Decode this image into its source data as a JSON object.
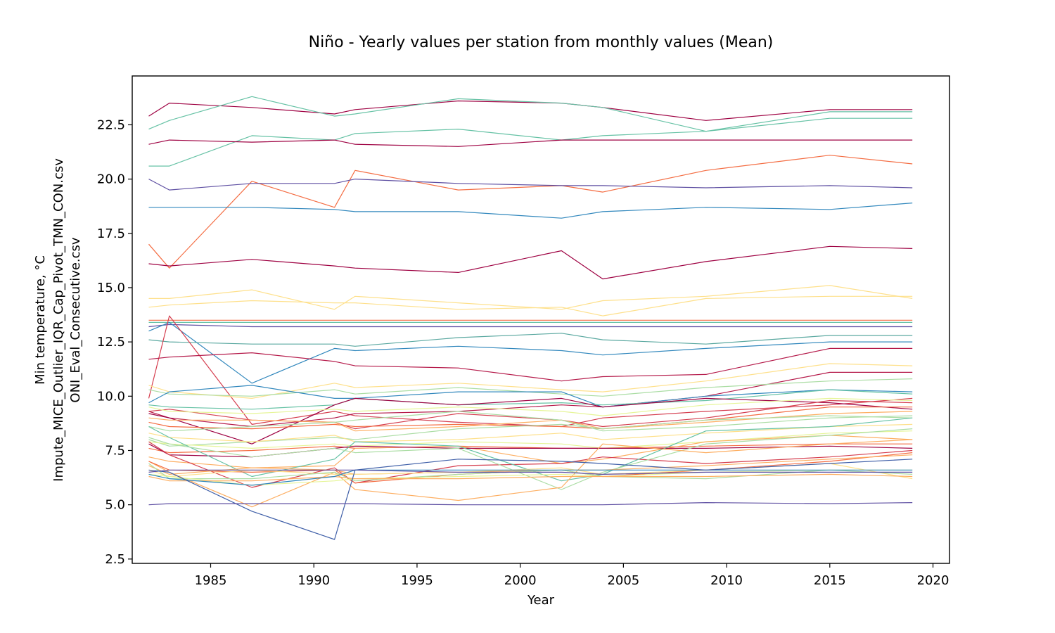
{
  "chart_data": {
    "type": "line",
    "title": "Niño - Yearly values per station from monthly values (Mean)",
    "xlabel": "Year",
    "ylabel_lines": [
      "Min temperature, °C",
      "Impute_MICE_Outlier_IQR_Cap_Pivot_TMN_CON.csv",
      "ONI_Eval_Consecutive.csv"
    ],
    "xlim": [
      1981.2,
      2020.8
    ],
    "ylim": [
      2.3,
      24.75
    ],
    "xticks": [
      1985,
      1990,
      1995,
      2000,
      2005,
      2010,
      2015,
      2020
    ],
    "yticks": [
      2.5,
      5.0,
      7.5,
      10.0,
      12.5,
      15.0,
      17.5,
      20.0,
      22.5
    ],
    "ytick_labels": [
      "2.5",
      "5.0",
      "7.5",
      "10.0",
      "12.5",
      "15.0",
      "17.5",
      "20.0",
      "22.5"
    ],
    "grid": false,
    "x": [
      1982,
      1983,
      1987,
      1991,
      1992,
      1997,
      2002,
      2004,
      2009,
      2015,
      2019
    ],
    "series": [
      {
        "color": "#9e0142",
        "values": [
          22.9,
          23.5,
          23.3,
          23.0,
          23.2,
          23.6,
          23.5,
          23.3,
          22.7,
          23.2,
          23.2
        ]
      },
      {
        "color": "#66c2a5",
        "values": [
          22.3,
          22.7,
          23.8,
          22.9,
          23.0,
          23.7,
          23.5,
          23.3,
          22.2,
          23.1,
          23.1
        ]
      },
      {
        "color": "#66c2a5",
        "values": [
          20.6,
          20.6,
          22.0,
          21.8,
          22.1,
          22.3,
          21.8,
          22.0,
          22.2,
          22.8,
          22.8
        ]
      },
      {
        "color": "#9e0142",
        "values": [
          21.6,
          21.8,
          21.7,
          21.8,
          21.6,
          21.5,
          21.8,
          21.8,
          21.8,
          21.8,
          21.8
        ]
      },
      {
        "color": "#f46d43",
        "values": [
          17.0,
          15.9,
          19.9,
          18.7,
          20.4,
          19.5,
          19.7,
          19.4,
          20.4,
          21.1,
          20.7
        ]
      },
      {
        "color": "#5e4fa2",
        "values": [
          20.0,
          19.5,
          19.8,
          19.8,
          20.0,
          19.8,
          19.7,
          19.7,
          19.6,
          19.7,
          19.6
        ]
      },
      {
        "color": "#3288bd",
        "values": [
          18.7,
          18.7,
          18.7,
          18.6,
          18.5,
          18.5,
          18.2,
          18.5,
          18.7,
          18.6,
          18.9
        ]
      },
      {
        "color": "#9e0142",
        "values": [
          16.1,
          16.0,
          16.3,
          16.0,
          15.9,
          15.7,
          16.7,
          15.4,
          16.2,
          16.9,
          16.8
        ]
      },
      {
        "color": "#fee08b",
        "values": [
          14.5,
          14.5,
          14.9,
          14.0,
          14.6,
          14.3,
          14.0,
          14.4,
          14.6,
          15.1,
          14.5
        ]
      },
      {
        "color": "#fee08b",
        "values": [
          14.1,
          14.2,
          14.4,
          14.3,
          14.3,
          14.0,
          14.1,
          13.7,
          14.5,
          14.6,
          14.6
        ]
      },
      {
        "color": "#f46d43",
        "values": [
          13.5,
          13.5,
          13.5,
          13.5,
          13.5,
          13.5,
          13.5,
          13.5,
          13.5,
          13.5,
          13.5
        ]
      },
      {
        "color": "#66c2a5",
        "values": [
          13.4,
          13.4,
          13.4,
          13.4,
          13.4,
          13.4,
          13.4,
          13.4,
          13.4,
          13.4,
          13.4
        ]
      },
      {
        "color": "#5e4fa2",
        "values": [
          13.2,
          13.3,
          13.2,
          13.2,
          13.2,
          13.2,
          13.2,
          13.2,
          13.2,
          13.2,
          13.2
        ]
      },
      {
        "color": "#3288bd",
        "values": [
          13.0,
          13.4,
          10.6,
          12.2,
          12.1,
          12.3,
          12.1,
          11.9,
          12.2,
          12.5,
          12.5
        ]
      },
      {
        "color": "#5aa8a0",
        "values": [
          12.6,
          12.5,
          12.4,
          12.4,
          12.3,
          12.7,
          12.9,
          12.6,
          12.4,
          12.8,
          12.8
        ]
      },
      {
        "color": "#d53e4f",
        "values": [
          9.9,
          13.7,
          8.7,
          9.3,
          9.1,
          8.8,
          8.6,
          9.0,
          9.3,
          9.6,
          9.9
        ]
      },
      {
        "color": "#b51a4a",
        "values": [
          11.7,
          11.8,
          12.0,
          11.6,
          11.4,
          11.3,
          10.7,
          10.9,
          11.0,
          12.2,
          12.2
        ]
      },
      {
        "color": "#b51a4a",
        "values": [
          9.3,
          9.0,
          8.6,
          9.0,
          9.2,
          9.3,
          9.6,
          9.5,
          10.0,
          11.1,
          11.1
        ]
      },
      {
        "color": "#fee08b",
        "values": [
          10.5,
          10.2,
          9.9,
          10.6,
          10.4,
          10.6,
          10.3,
          10.2,
          10.7,
          11.5,
          11.4
        ]
      },
      {
        "color": "#abdda4",
        "values": [
          10.3,
          10.1,
          10.0,
          10.3,
          10.1,
          10.4,
          10.1,
          10.0,
          10.4,
          10.7,
          10.8
        ]
      },
      {
        "color": "#3288bd",
        "values": [
          9.7,
          10.2,
          10.5,
          9.9,
          9.9,
          10.2,
          10.2,
          9.5,
          10.0,
          10.3,
          10.2
        ]
      },
      {
        "color": "#66c2a5",
        "values": [
          9.6,
          9.5,
          9.4,
          9.6,
          9.9,
          9.6,
          9.7,
          9.6,
          9.8,
          10.3,
          10.1
        ]
      },
      {
        "color": "#9e0142",
        "values": [
          9.2,
          9.0,
          7.8,
          9.6,
          9.9,
          9.6,
          9.9,
          9.5,
          9.9,
          9.7,
          9.4
        ]
      },
      {
        "color": "#d53e4f",
        "values": [
          9.3,
          9.4,
          8.9,
          8.8,
          8.5,
          9.2,
          8.9,
          8.6,
          9.0,
          9.8,
          9.7
        ]
      },
      {
        "color": "#f46d43",
        "values": [
          8.8,
          8.6,
          8.5,
          8.7,
          8.6,
          8.7,
          8.6,
          8.5,
          8.9,
          9.5,
          9.5
        ]
      },
      {
        "color": "#fdae61",
        "values": [
          9.0,
          8.9,
          8.9,
          8.8,
          8.4,
          8.6,
          8.9,
          8.5,
          8.8,
          9.2,
          9.3
        ]
      },
      {
        "color": "#abdda4",
        "values": [
          8.6,
          8.4,
          8.6,
          8.8,
          8.9,
          9.3,
          8.9,
          8.4,
          8.6,
          9.0,
          9.1
        ]
      },
      {
        "color": "#e6f598",
        "values": [
          9.5,
          9.3,
          9.2,
          9.4,
          9.3,
          9.5,
          9.3,
          9.1,
          9.6,
          9.9,
          9.8
        ]
      },
      {
        "color": "#abdda4",
        "values": [
          8.0,
          7.7,
          7.9,
          8.1,
          8.0,
          8.5,
          8.7,
          8.5,
          8.9,
          9.1,
          9.0
        ]
      },
      {
        "color": "#fee08b",
        "values": [
          8.3,
          8.1,
          7.9,
          8.2,
          7.9,
          8.0,
          8.3,
          8.0,
          8.3,
          8.6,
          8.7
        ]
      },
      {
        "color": "#e6f598",
        "values": [
          7.9,
          7.8,
          7.6,
          7.8,
          7.7,
          7.9,
          7.8,
          7.6,
          7.9,
          8.3,
          8.4
        ]
      },
      {
        "color": "#f46d43",
        "values": [
          7.6,
          7.4,
          7.5,
          7.7,
          7.6,
          7.7,
          7.6,
          7.6,
          7.7,
          7.8,
          7.8
        ]
      },
      {
        "color": "#fdae61",
        "values": [
          7.2,
          7.0,
          6.7,
          6.8,
          7.6,
          7.7,
          6.9,
          7.1,
          7.9,
          8.2,
          8.0
        ]
      },
      {
        "color": "#9e0142",
        "values": [
          7.8,
          7.3,
          7.2,
          7.6,
          7.7,
          7.6,
          7.6,
          7.6,
          7.6,
          7.7,
          7.6
        ]
      },
      {
        "color": "#d53e4f",
        "values": [
          7.9,
          7.3,
          5.8,
          6.7,
          6.0,
          6.8,
          6.9,
          7.2,
          6.9,
          7.2,
          7.5
        ]
      },
      {
        "color": "#66c2a5",
        "values": [
          8.6,
          8.1,
          6.3,
          7.1,
          7.9,
          7.7,
          6.1,
          6.4,
          8.4,
          8.6,
          9.0
        ]
      },
      {
        "color": "#abdda4",
        "values": [
          8.1,
          7.8,
          7.2,
          7.6,
          7.4,
          7.6,
          5.7,
          6.5,
          7.8,
          8.2,
          8.5
        ]
      },
      {
        "color": "#fdae61",
        "values": [
          7.0,
          6.5,
          4.9,
          6.5,
          5.7,
          5.2,
          5.8,
          7.8,
          7.4,
          7.8,
          8.0
        ]
      },
      {
        "color": "#f46d43",
        "values": [
          7.0,
          6.6,
          6.5,
          6.6,
          6.0,
          6.4,
          6.6,
          6.3,
          6.6,
          7.0,
          7.4
        ]
      },
      {
        "color": "#fdae61",
        "values": [
          6.8,
          6.4,
          6.7,
          6.6,
          6.4,
          6.5,
          6.6,
          6.6,
          6.8,
          7.1,
          7.3
        ]
      },
      {
        "color": "#fee08b",
        "values": [
          6.6,
          6.3,
          6.6,
          6.4,
          6.4,
          6.5,
          6.7,
          6.4,
          6.6,
          6.9,
          6.2
        ]
      },
      {
        "color": "#abdda4",
        "values": [
          6.9,
          6.2,
          6.2,
          6.5,
          6.1,
          6.4,
          6.6,
          6.3,
          6.2,
          6.6,
          6.4
        ]
      },
      {
        "color": "#e6f598",
        "values": [
          6.4,
          6.3,
          5.9,
          6.1,
          6.2,
          6.3,
          6.4,
          6.3,
          6.5,
          6.6,
          6.6
        ]
      },
      {
        "color": "#fdae61",
        "values": [
          6.3,
          6.1,
          6.1,
          6.3,
          6.2,
          6.2,
          6.3,
          6.3,
          6.3,
          6.4,
          6.3
        ]
      },
      {
        "color": "#3288bd",
        "values": [
          6.4,
          6.2,
          5.9,
          6.3,
          6.6,
          6.6,
          6.6,
          6.6,
          6.6,
          6.6,
          6.6
        ]
      },
      {
        "color": "#5e4fa2",
        "values": [
          6.5,
          6.6,
          6.6,
          6.6,
          6.6,
          6.5,
          6.5,
          6.4,
          6.5,
          6.5,
          6.5
        ]
      },
      {
        "color": "#3f5fa8",
        "values": [
          6.6,
          6.5,
          4.7,
          3.4,
          6.6,
          7.1,
          7.0,
          6.9,
          6.6,
          6.9,
          7.1
        ]
      },
      {
        "color": "#5e4fa2",
        "values": [
          5.0,
          5.05,
          5.05,
          5.05,
          5.05,
          5.0,
          5.0,
          5.0,
          5.1,
          5.05,
          5.1
        ]
      }
    ]
  }
}
